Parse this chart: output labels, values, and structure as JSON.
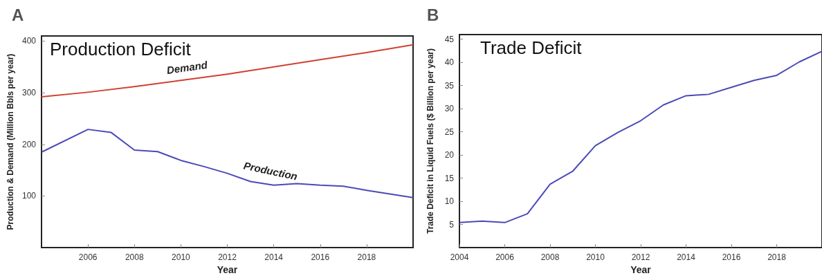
{
  "chart_data": [
    {
      "type": "line",
      "title": "A",
      "annotations": [
        "Production Deficit"
      ],
      "xlabel": "Year",
      "ylabel": "Production & Demand (Million Bbls per year)",
      "xlim": [
        2004,
        2020
      ],
      "xticks": [
        2006,
        2008,
        2010,
        2012,
        2014,
        2016,
        2018
      ],
      "ylim": [
        0,
        410
      ],
      "yticks": [
        100,
        200,
        300,
        400
      ],
      "grid": false,
      "line_style": "solid",
      "marker": "none",
      "series": [
        {
          "name": "Demand",
          "color": "#d04030",
          "x": [
            2004,
            2006,
            2008,
            2010,
            2012,
            2014,
            2016,
            2018,
            2020
          ],
          "values": [
            292,
            301,
            312,
            324,
            336,
            350,
            364,
            378,
            393
          ]
        },
        {
          "name": "Production",
          "color": "#4a4ab8",
          "x": [
            2004,
            2006,
            2007,
            2008,
            2009,
            2010,
            2011,
            2012,
            2013,
            2014,
            2015,
            2016,
            2017,
            2018,
            2019,
            2020
          ],
          "values": [
            185,
            229,
            223,
            189,
            186,
            169,
            157,
            144,
            128,
            121,
            124,
            121,
            119,
            111,
            104,
            97
          ]
        }
      ]
    },
    {
      "type": "line",
      "title": "B",
      "annotations": [
        "Trade Deficit"
      ],
      "xlabel": "Year",
      "ylabel": "Trade Deficit in Liquid Fuels ($ Billion per year)",
      "xlim": [
        2004,
        2020
      ],
      "xticks": [
        2004,
        2006,
        2008,
        2010,
        2012,
        2014,
        2016,
        2018
      ],
      "ylim": [
        0,
        46
      ],
      "yticks": [
        5,
        10,
        15,
        20,
        25,
        30,
        35,
        40,
        45
      ],
      "grid": false,
      "line_style": "solid",
      "marker": "none",
      "series": [
        {
          "color": "#4a4ab8",
          "x": [
            2004,
            2005,
            2006,
            2007,
            2008,
            2009,
            2010,
            2011,
            2012,
            2013,
            2014,
            2015,
            2016,
            2017,
            2018,
            2019,
            2020
          ],
          "values": [
            5.4,
            5.7,
            5.4,
            7.3,
            13.7,
            16.5,
            22,
            24.9,
            27.4,
            30.8,
            32.8,
            33.1,
            34.6,
            36.1,
            37.2,
            40.1,
            42.4
          ]
        }
      ]
    }
  ]
}
